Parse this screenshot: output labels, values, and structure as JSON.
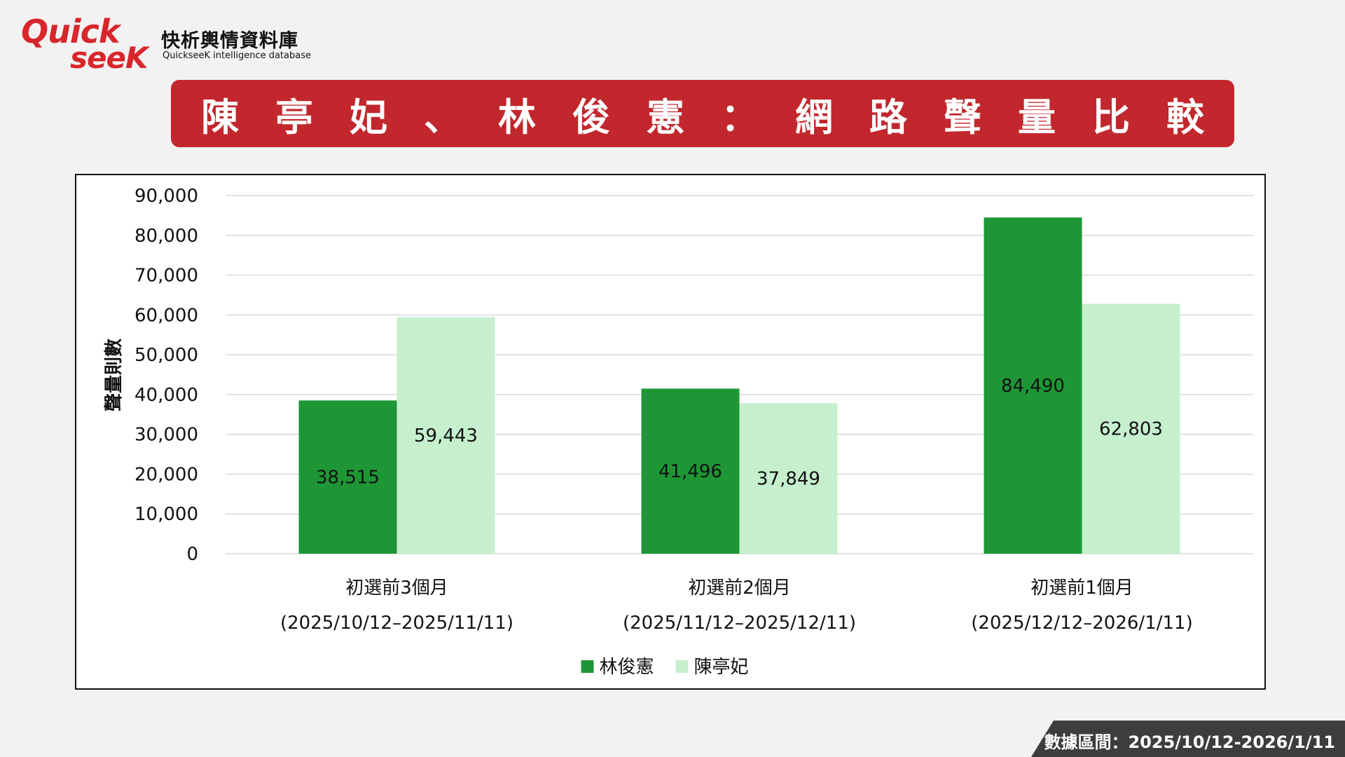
{
  "logo": {
    "brand_line1": "Quick",
    "brand_line2": "seeK",
    "name_cn": "快析輿情資料庫",
    "name_en": "QuickseeK intelligence database"
  },
  "title": "陳亭妃、林俊憲：網路聲量比較",
  "footer": "數據區間：2025/10/12-2026/1/11",
  "colors": {
    "title_bg": "#c1272d",
    "series1": "#1e9636",
    "series2": "#c6efce",
    "footer_bg": "#3d3d3d"
  },
  "chart_data": {
    "type": "bar",
    "categories": [
      "初選前3個月",
      "初選前2個月",
      "初選前1個月"
    ],
    "category_ranges": [
      "(2025/10/12–2025/11/11)",
      "(2025/11/12–2025/12/11)",
      "(2025/12/12–2026/1/11)"
    ],
    "series": [
      {
        "name": "林俊憲",
        "values": [
          38515,
          41496,
          84490
        ],
        "labels": [
          "38,515",
          "41,496",
          "84,490"
        ]
      },
      {
        "name": "陳亭妃",
        "values": [
          59443,
          37849,
          62803
        ],
        "labels": [
          "59,443",
          "37,849",
          "62,803"
        ]
      }
    ],
    "ylabel": "聲量則數",
    "ylim": [
      0,
      90000
    ],
    "yticks": [
      "0",
      "10,000",
      "20,000",
      "30,000",
      "40,000",
      "50,000",
      "60,000",
      "70,000",
      "80,000",
      "90,000"
    ],
    "grid": true,
    "legend": "bottom-center"
  }
}
